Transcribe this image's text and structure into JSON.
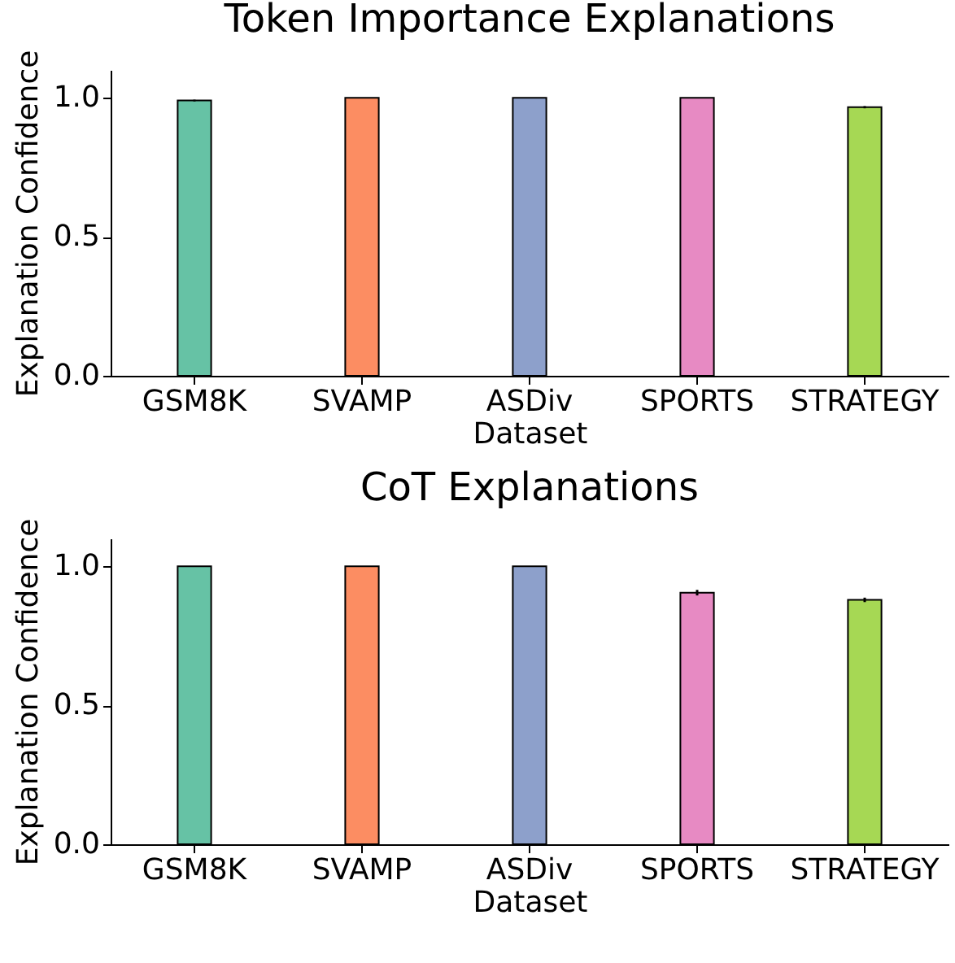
{
  "chart_data": [
    {
      "type": "bar",
      "title": "Token Importance Explanations",
      "xlabel": "Dataset",
      "ylabel": "Explanation Confidence",
      "categories": [
        "GSM8K",
        "SVAMP",
        "ASDiv",
        "SPORTS",
        "STRATEGY"
      ],
      "values": [
        0.99,
        1.0,
        1.0,
        1.0,
        0.966
      ],
      "errors": [
        0.003,
        null,
        null,
        null,
        0.004
      ],
      "colors": [
        "#66c2a5",
        "#fc8d62",
        "#8da0cb",
        "#e78ac3",
        "#a6d854"
      ],
      "ylim": [
        0,
        1.1
      ],
      "yticks": [
        {
          "value": 0,
          "label": "0.0"
        },
        {
          "value": 0.5,
          "label": "0.5"
        },
        {
          "value": 1,
          "label": "1.0"
        }
      ],
      "grid": false
    },
    {
      "type": "bar",
      "title": "CoT Explanations",
      "xlabel": "Dataset",
      "ylabel": "Explanation Confidence",
      "categories": [
        "GSM8K",
        "SVAMP",
        "ASDiv",
        "SPORTS",
        "STRATEGY"
      ],
      "values": [
        1.0,
        1.0,
        1.0,
        0.905,
        0.879
      ],
      "errors": [
        null,
        null,
        null,
        0.01,
        0.008
      ],
      "colors": [
        "#66c2a5",
        "#fc8d62",
        "#8da0cb",
        "#e78ac3",
        "#a6d854"
      ],
      "ylim": [
        0,
        1.1
      ],
      "yticks": [
        {
          "value": 0,
          "label": "0.0"
        },
        {
          "value": 0.5,
          "label": "0.5"
        },
        {
          "value": 1,
          "label": "1.0"
        }
      ],
      "grid": false
    }
  ]
}
